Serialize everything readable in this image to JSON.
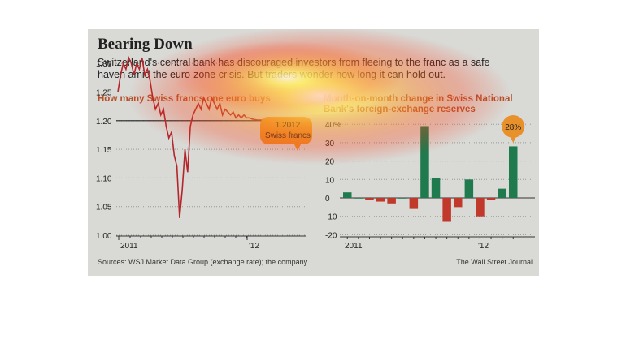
{
  "header": {
    "title": "Bearing Down",
    "description": "Switzerland's central bank has discouraged investors from fleeing to the franc as a safe haven amid the euro-zone crisis. But traders wonder how long it can hold out."
  },
  "footer": {
    "source": "Sources: WSJ Market Data Group (exchange rate); the company",
    "credit": "The Wall Street Journal"
  },
  "colors": {
    "line": "#b3262c",
    "floor": "#222222",
    "neg_bar": "#c0392b",
    "pos_bar": "#1f7a4d",
    "callout": "#e8902a"
  },
  "chart_data": [
    {
      "type": "line",
      "title": "How many Swiss francs one euro buys",
      "x_ticks": [
        "2011",
        "'12"
      ],
      "y_ticks": [
        "1.30",
        "1.25",
        "1.20",
        "1.15",
        "1.10",
        "1.05",
        "1.00"
      ],
      "ylim": [
        1.0,
        1.32
      ],
      "reference_line": 1.2,
      "callout": {
        "value": "1.2012",
        "unit": "Swiss francs"
      },
      "x": [
        0,
        1,
        2,
        3,
        4,
        5,
        6,
        7,
        8,
        9,
        10,
        11,
        12,
        13,
        14,
        15,
        16,
        17,
        18,
        19,
        20,
        21,
        22,
        23,
        24,
        25,
        26,
        27,
        28,
        29,
        30,
        31,
        32,
        33,
        34,
        35,
        36,
        37,
        38,
        39,
        40,
        41,
        42,
        43,
        44,
        45,
        46,
        47,
        48,
        49,
        50,
        51,
        52,
        53,
        54,
        55,
        56,
        57,
        58,
        59,
        60
      ],
      "values": [
        1.25,
        1.28,
        1.3,
        1.29,
        1.31,
        1.3,
        1.28,
        1.3,
        1.29,
        1.31,
        1.28,
        1.29,
        1.27,
        1.24,
        1.22,
        1.23,
        1.21,
        1.22,
        1.19,
        1.17,
        1.18,
        1.14,
        1.12,
        1.03,
        1.08,
        1.15,
        1.11,
        1.19,
        1.21,
        1.22,
        1.23,
        1.22,
        1.24,
        1.23,
        1.22,
        1.24,
        1.23,
        1.22,
        1.23,
        1.21,
        1.22,
        1.215,
        1.21,
        1.215,
        1.205,
        1.21,
        1.205,
        1.21,
        1.205,
        1.205,
        1.203,
        1.202,
        1.2012,
        1.2012,
        1.2012,
        1.2012,
        1.2012,
        1.2012,
        1.2012,
        1.2012,
        1.2012
      ]
    },
    {
      "type": "bar",
      "title": "Month-on-month change in Swiss National Bank's foreign-exchange reserves",
      "x_ticks": [
        "2011",
        "'12"
      ],
      "y_ticks": [
        "40%",
        "30",
        "20",
        "10",
        "0",
        "-10",
        "-20"
      ],
      "ylim": [
        -21,
        41
      ],
      "callout": {
        "value": "28%"
      },
      "values": [
        3,
        0,
        -1,
        -2,
        -3,
        0,
        -6,
        39,
        11,
        -13,
        -5,
        10,
        -10,
        -1,
        5,
        28
      ]
    }
  ]
}
